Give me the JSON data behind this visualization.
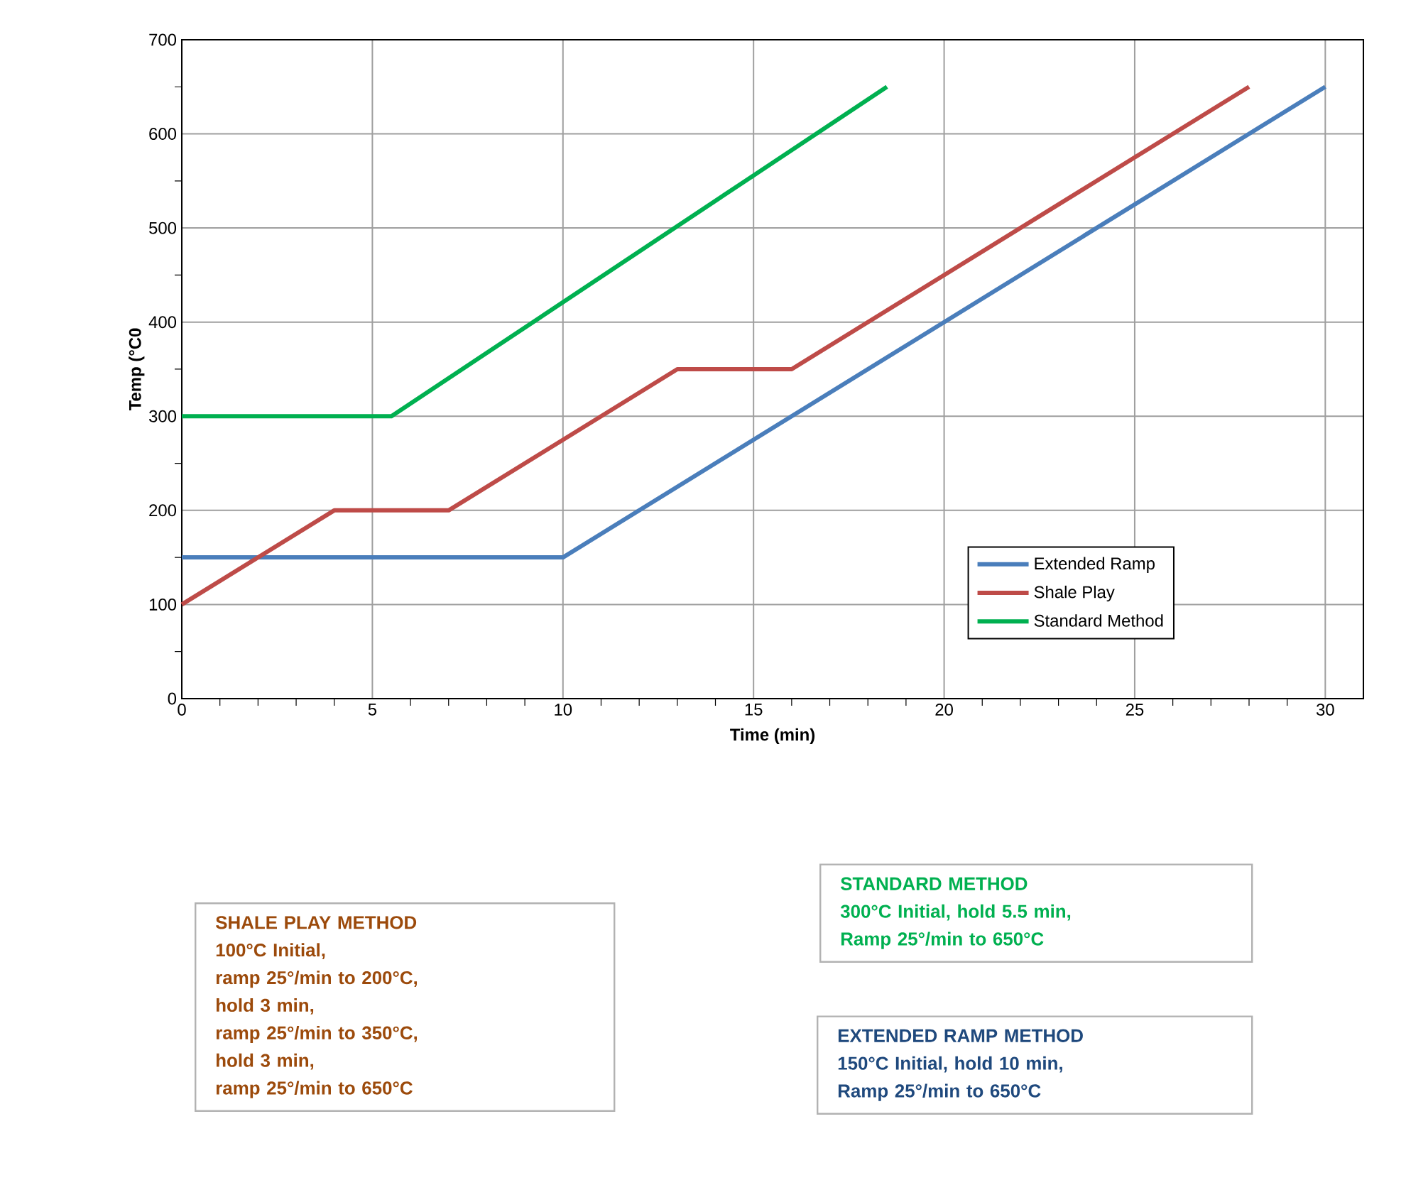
{
  "chart_data": {
    "type": "line",
    "xlabel": "Time (min)",
    "ylabel": "Temp (°C0",
    "xlim": [
      0,
      31
    ],
    "xticks": [
      0,
      5,
      10,
      15,
      20,
      25,
      30
    ],
    "ylim": [
      0,
      700
    ],
    "yticks": [
      0,
      100,
      200,
      300,
      400,
      500,
      600,
      700
    ],
    "grid": true,
    "legend": "bottom right",
    "marker": "none",
    "line_style": "solid",
    "series": [
      {
        "name": "Extended Ramp",
        "color": "#4a7ebb",
        "x": [
          0,
          10,
          30
        ],
        "values": [
          150,
          150,
          650
        ]
      },
      {
        "name": "Shale Play",
        "color": "#be4b48",
        "x": [
          0,
          4,
          7,
          13,
          16,
          28
        ],
        "values": [
          100,
          200,
          200,
          350,
          350,
          650
        ]
      },
      {
        "name": "Standard Method",
        "color": "#00b050",
        "x": [
          0,
          5.5,
          18.5
        ],
        "values": [
          300,
          300,
          650
        ]
      }
    ],
    "annotations": [
      "SHALE PLAY METHOD",
      "100°C Initial,",
      "ramp 25°/min to 200°C,",
      "hold 3 min,",
      "ramp 25°/min to 350°C,",
      "hold 3 min,",
      "ramp 25°/min to 650°C",
      "STANDARD METHOD",
      "300°C Initial, hold 5.5 min,",
      "Ramp 25°/min to 650°C",
      "EXTENDED RAMP METHOD",
      "150°C Initial, hold 10 min,",
      "Ramp 25°/min to 650°C"
    ]
  }
}
